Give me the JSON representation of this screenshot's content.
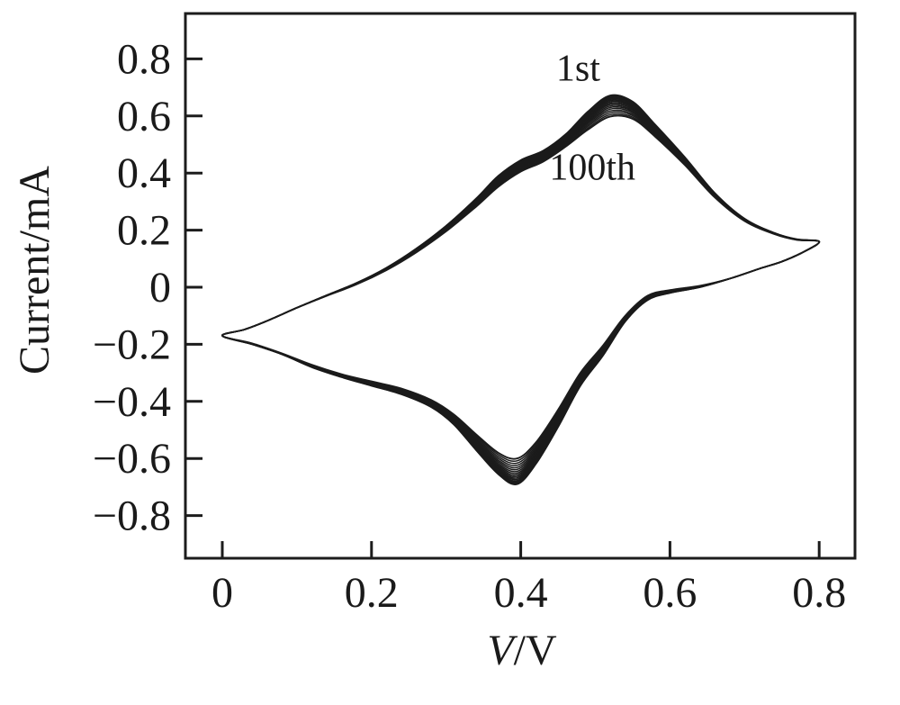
{
  "figure": {
    "background": "#ffffff",
    "line_color": "#1b1b1b",
    "text_color": "#1a1a1a"
  },
  "chart_data": {
    "type": "line",
    "subtype": "cyclic-voltammogram",
    "title": "",
    "xlabel": "V/V",
    "xlabel_parts": [
      "V",
      "/V"
    ],
    "ylabel": "Current/mA",
    "xlim": [
      -0.05,
      0.85
    ],
    "ylim": [
      -0.97,
      0.97
    ],
    "grid": false,
    "legend": false,
    "x_ticks": [
      0,
      0.2,
      0.4,
      0.6,
      0.8
    ],
    "x_tick_labels": [
      "0",
      "0.2",
      "0.4",
      "0.6",
      "0.8"
    ],
    "y_ticks": [
      0.8,
      0.6,
      0.4,
      0.2,
      0,
      -0.2,
      -0.4,
      -0.6,
      -0.8
    ],
    "y_tick_labels": [
      "0.8",
      "0.6",
      "0.4",
      "0.2",
      "0",
      "−0.2",
      "−0.4",
      "−0.6",
      "−0.8"
    ],
    "annotations": [
      {
        "text": "1st",
        "x": 0.477,
        "y": 0.771
      },
      {
        "text": "100th",
        "x": 0.496,
        "y": 0.425
      }
    ],
    "cycles_shown": 100,
    "render_loops": 18,
    "line_color": "#1b1b1b",
    "series": [
      {
        "name": "1st cycle (outer loop)",
        "points": [
          [
            0.0,
            -0.17
          ],
          [
            0.03,
            -0.148
          ],
          [
            0.06,
            -0.118
          ],
          [
            0.1,
            -0.072
          ],
          [
            0.14,
            -0.028
          ],
          [
            0.18,
            0.015
          ],
          [
            0.22,
            0.068
          ],
          [
            0.26,
            0.135
          ],
          [
            0.3,
            0.215
          ],
          [
            0.34,
            0.31
          ],
          [
            0.37,
            0.39
          ],
          [
            0.4,
            0.445
          ],
          [
            0.43,
            0.478
          ],
          [
            0.46,
            0.535
          ],
          [
            0.49,
            0.615
          ],
          [
            0.52,
            0.672
          ],
          [
            0.55,
            0.65
          ],
          [
            0.58,
            0.57
          ],
          [
            0.62,
            0.455
          ],
          [
            0.66,
            0.33
          ],
          [
            0.7,
            0.24
          ],
          [
            0.74,
            0.19
          ],
          [
            0.77,
            0.168
          ],
          [
            0.8,
            0.16
          ],
          [
            0.78,
            0.125
          ],
          [
            0.75,
            0.09
          ],
          [
            0.72,
            0.065
          ],
          [
            0.68,
            0.03
          ],
          [
            0.64,
            0.0
          ],
          [
            0.6,
            -0.02
          ],
          [
            0.57,
            -0.045
          ],
          [
            0.54,
            -0.12
          ],
          [
            0.51,
            -0.24
          ],
          [
            0.48,
            -0.345
          ],
          [
            0.45,
            -0.49
          ],
          [
            0.42,
            -0.62
          ],
          [
            0.395,
            -0.69
          ],
          [
            0.37,
            -0.655
          ],
          [
            0.34,
            -0.57
          ],
          [
            0.31,
            -0.48
          ],
          [
            0.28,
            -0.42
          ],
          [
            0.24,
            -0.375
          ],
          [
            0.2,
            -0.345
          ],
          [
            0.16,
            -0.315
          ],
          [
            0.12,
            -0.28
          ],
          [
            0.08,
            -0.235
          ],
          [
            0.04,
            -0.2
          ]
        ]
      },
      {
        "name": "100th cycle (inner loop)",
        "points": [
          [
            0.0,
            -0.17
          ],
          [
            0.03,
            -0.148
          ],
          [
            0.06,
            -0.118
          ],
          [
            0.1,
            -0.072
          ],
          [
            0.14,
            -0.03
          ],
          [
            0.18,
            0.01
          ],
          [
            0.22,
            0.06
          ],
          [
            0.26,
            0.122
          ],
          [
            0.3,
            0.196
          ],
          [
            0.34,
            0.282
          ],
          [
            0.37,
            0.352
          ],
          [
            0.4,
            0.405
          ],
          [
            0.43,
            0.44
          ],
          [
            0.46,
            0.492
          ],
          [
            0.49,
            0.552
          ],
          [
            0.52,
            0.598
          ],
          [
            0.55,
            0.59
          ],
          [
            0.58,
            0.528
          ],
          [
            0.62,
            0.428
          ],
          [
            0.66,
            0.315
          ],
          [
            0.7,
            0.232
          ],
          [
            0.74,
            0.186
          ],
          [
            0.77,
            0.166
          ],
          [
            0.8,
            0.16
          ],
          [
            0.78,
            0.125
          ],
          [
            0.75,
            0.09
          ],
          [
            0.72,
            0.065
          ],
          [
            0.68,
            0.03
          ],
          [
            0.64,
            0.005
          ],
          [
            0.6,
            -0.01
          ],
          [
            0.57,
            -0.03
          ],
          [
            0.54,
            -0.1
          ],
          [
            0.51,
            -0.205
          ],
          [
            0.48,
            -0.3
          ],
          [
            0.45,
            -0.43
          ],
          [
            0.42,
            -0.545
          ],
          [
            0.395,
            -0.6
          ],
          [
            0.37,
            -0.58
          ],
          [
            0.34,
            -0.515
          ],
          [
            0.31,
            -0.445
          ],
          [
            0.28,
            -0.395
          ],
          [
            0.24,
            -0.355
          ],
          [
            0.2,
            -0.33
          ],
          [
            0.16,
            -0.305
          ],
          [
            0.12,
            -0.272
          ],
          [
            0.08,
            -0.232
          ],
          [
            0.04,
            -0.197
          ]
        ]
      }
    ]
  }
}
